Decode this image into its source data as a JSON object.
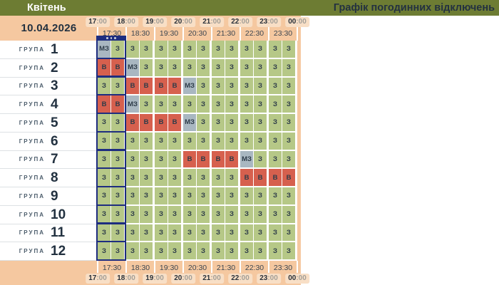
{
  "topbar": {
    "month_label": "Квітень",
    "app_title": "Графік погодинних відключень"
  },
  "schedule_header": {
    "date": "10.04.2026"
  },
  "timeline": {
    "hour_labels": [
      "17",
      "18",
      "19",
      "20",
      "21",
      "22",
      "23",
      "00"
    ],
    "minute_suffix": ":00",
    "half_hour_labels": [
      "17:30",
      "18:30",
      "19:30",
      "20:30",
      "21:30",
      "22:30",
      "23:30"
    ]
  },
  "schedule": {
    "group_word": "ГРУПА",
    "current_time_indicator": {
      "column_index": 0
    },
    "groups": [
      {
        "number": "1",
        "cells": [
          "МЗ",
          "З",
          "З",
          "З",
          "З",
          "З",
          "З",
          "З",
          "З",
          "З",
          "З",
          "З",
          "З",
          "З"
        ]
      },
      {
        "number": "2",
        "cells": [
          "В",
          "В",
          "МЗ",
          "З",
          "З",
          "З",
          "З",
          "З",
          "З",
          "З",
          "З",
          "З",
          "З",
          "З"
        ]
      },
      {
        "number": "3",
        "cells": [
          "З",
          "З",
          "В",
          "В",
          "В",
          "В",
          "МЗ",
          "З",
          "З",
          "З",
          "З",
          "З",
          "З",
          "З"
        ]
      },
      {
        "number": "4",
        "cells": [
          "В",
          "В",
          "МЗ",
          "З",
          "З",
          "З",
          "З",
          "З",
          "З",
          "З",
          "З",
          "З",
          "З",
          "З"
        ]
      },
      {
        "number": "5",
        "cells": [
          "З",
          "З",
          "В",
          "В",
          "В",
          "В",
          "МЗ",
          "З",
          "З",
          "З",
          "З",
          "З",
          "З",
          "З"
        ]
      },
      {
        "number": "6",
        "cells": [
          "З",
          "З",
          "З",
          "З",
          "З",
          "З",
          "З",
          "З",
          "З",
          "З",
          "З",
          "З",
          "З",
          "З"
        ]
      },
      {
        "number": "7",
        "cells": [
          "З",
          "З",
          "З",
          "З",
          "З",
          "З",
          "В",
          "В",
          "В",
          "В",
          "МЗ",
          "З",
          "З",
          "З"
        ]
      },
      {
        "number": "8",
        "cells": [
          "З",
          "З",
          "З",
          "З",
          "З",
          "З",
          "З",
          "З",
          "З",
          "З",
          "В",
          "В",
          "В",
          "В"
        ]
      },
      {
        "number": "9",
        "cells": [
          "З",
          "З",
          "З",
          "З",
          "З",
          "З",
          "З",
          "З",
          "З",
          "З",
          "З",
          "З",
          "З",
          "З"
        ]
      },
      {
        "number": "10",
        "cells": [
          "З",
          "З",
          "З",
          "З",
          "З",
          "З",
          "З",
          "З",
          "З",
          "З",
          "З",
          "З",
          "З",
          "З"
        ]
      },
      {
        "number": "11",
        "cells": [
          "З",
          "З",
          "З",
          "З",
          "З",
          "З",
          "З",
          "З",
          "З",
          "З",
          "З",
          "З",
          "З",
          "З"
        ]
      },
      {
        "number": "12",
        "cells": [
          "З",
          "З",
          "З",
          "З",
          "З",
          "З",
          "З",
          "З",
          "З",
          "З",
          "З",
          "З",
          "З",
          "З"
        ]
      }
    ]
  },
  "colors": {
    "olive_bar": "#6d7c33",
    "peach_band": "#f5c8a0",
    "hour_pill_bg": "#f8dfc6",
    "navy_accent": "#1e2d80",
    "cell_text": "#2d3b48",
    "states": {
      "З": "#b6c887",
      "В": "#d6604e",
      "МЗ": "#a9b7c1"
    }
  }
}
